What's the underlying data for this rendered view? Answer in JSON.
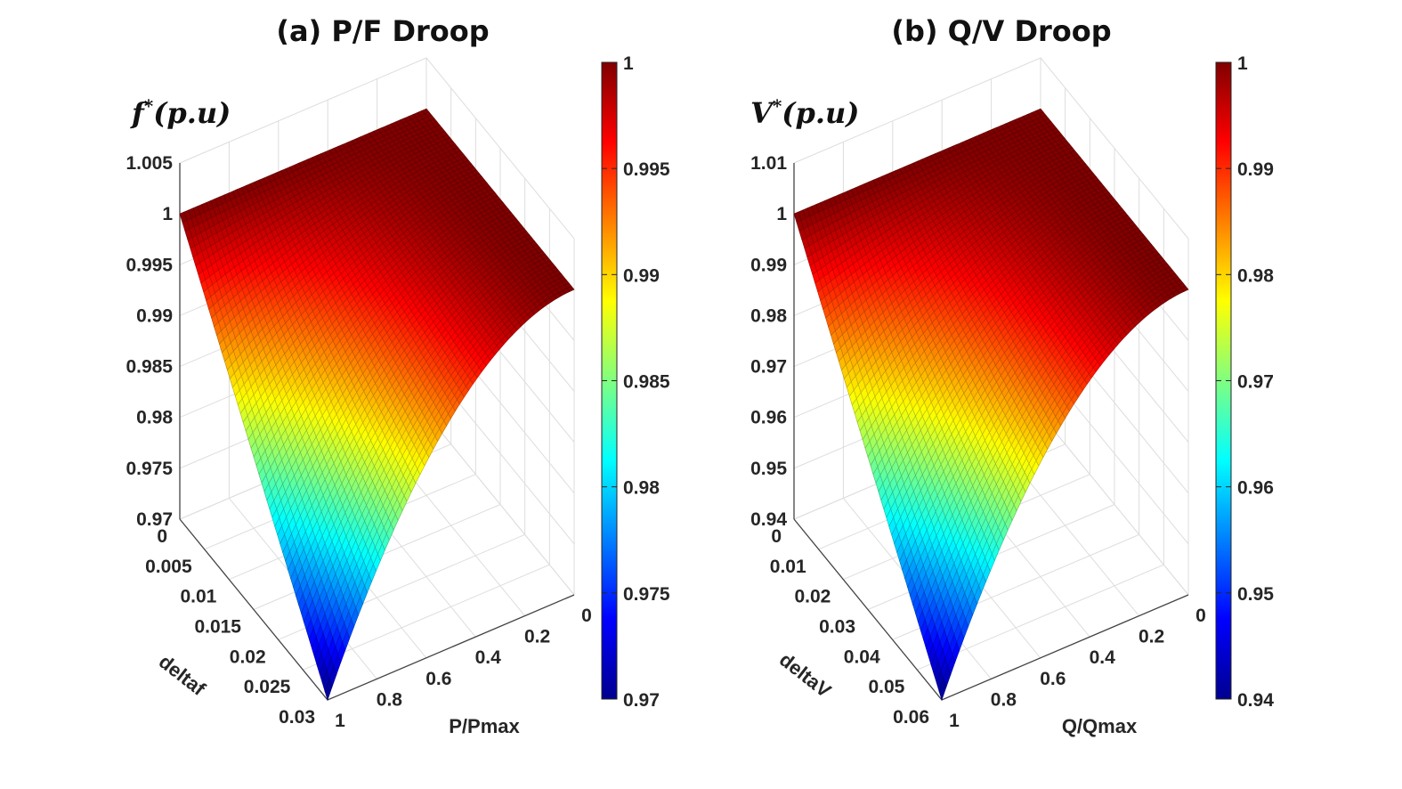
{
  "colors": {
    "colormap": "jet",
    "mesh_edge": "darken",
    "grid": "#dddddd",
    "axis": "#444444"
  },
  "chart_data": [
    {
      "type": "surface",
      "title": "(a) P/F Droop",
      "zlabel_main": "f",
      "zlabel_sup": "*",
      "zlabel_rest": "(p.u)",
      "xlabel": "P/Pmax",
      "ylabel": "deltaf",
      "x_range": [
        0,
        1
      ],
      "y_range": [
        0,
        0.03
      ],
      "z_range": [
        0.97,
        1.005
      ],
      "x_ticks": [
        "0",
        "0.2",
        "0.4",
        "0.6",
        "0.8",
        "1"
      ],
      "y_ticks": [
        "0",
        "0.005",
        "0.01",
        "0.015",
        "0.02",
        "0.025",
        "0.03"
      ],
      "z_ticks": [
        "0.97",
        "0.975",
        "0.98",
        "0.985",
        "0.99",
        "0.995",
        "1",
        "1.005"
      ],
      "colorbar_range": [
        0.97,
        1
      ],
      "colorbar_ticks": [
        "0.97",
        "0.975",
        "0.98",
        "0.985",
        "0.99",
        "0.995",
        "1"
      ],
      "function": "z = 1 - y*x^2",
      "corner_values": {
        "x0_y0": 1,
        "x1_y0": 1,
        "x0_y1": 1,
        "x1_y1": 0.97
      },
      "grid": true
    },
    {
      "type": "surface",
      "title": "(b) Q/V Droop",
      "zlabel_main": "V",
      "zlabel_sup": "*",
      "zlabel_rest": "(p.u)",
      "xlabel": "Q/Qmax",
      "ylabel": "deltaV",
      "x_range": [
        0,
        1
      ],
      "y_range": [
        0,
        0.06
      ],
      "z_range": [
        0.94,
        1.01
      ],
      "x_ticks": [
        "0",
        "0.2",
        "0.4",
        "0.6",
        "0.8",
        "1"
      ],
      "y_ticks": [
        "0",
        "0.01",
        "0.02",
        "0.03",
        "0.04",
        "0.05",
        "0.06"
      ],
      "z_ticks": [
        "0.94",
        "0.95",
        "0.96",
        "0.97",
        "0.98",
        "0.99",
        "1",
        "1.01"
      ],
      "colorbar_range": [
        0.94,
        1
      ],
      "colorbar_ticks": [
        "0.94",
        "0.95",
        "0.96",
        "0.97",
        "0.98",
        "0.99",
        "1"
      ],
      "function": "z = 1 - y*x^2",
      "corner_values": {
        "x0_y0": 1,
        "x1_y0": 1,
        "x0_y1": 1,
        "x1_y1": 0.94
      },
      "grid": true
    }
  ]
}
